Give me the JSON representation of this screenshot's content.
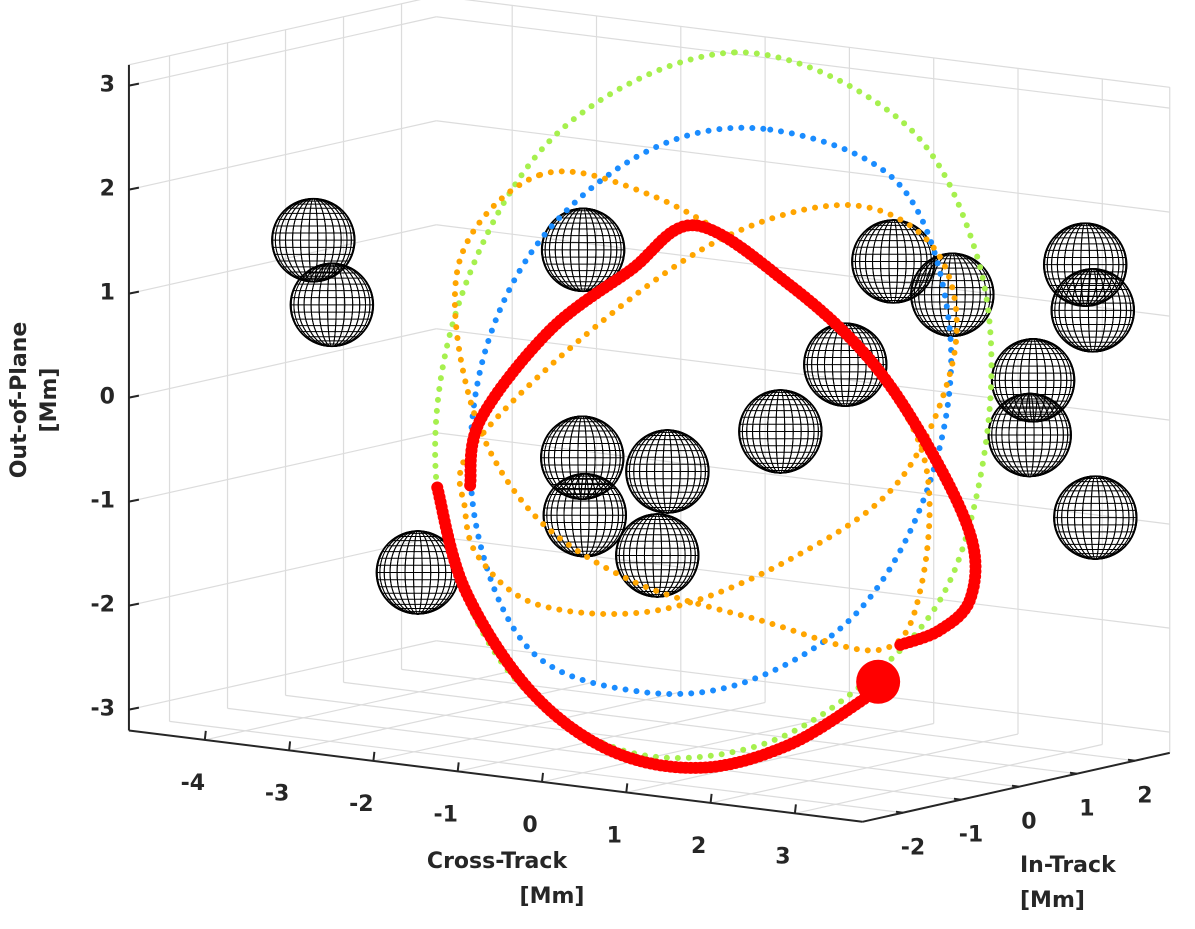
{
  "chart_data": {
    "type": "scatter3d",
    "xlabel": [
      "Cross-Track",
      "[Mm]"
    ],
    "ylabel": [
      "In-Track",
      "[Mm]"
    ],
    "zlabel": [
      "Out-of-Plane",
      "[Mm]"
    ],
    "xlim": [
      -4.9,
      3.8
    ],
    "ylim": [
      -2.7,
      2.6
    ],
    "zlim": [
      -3.2,
      3.2
    ],
    "xticks": [
      -4,
      -3,
      -2,
      -1,
      0,
      1,
      2,
      3
    ],
    "yticks": [
      -2,
      -1,
      0,
      1,
      2
    ],
    "zticks": [
      -3,
      -2,
      -1,
      0,
      1,
      2,
      3
    ],
    "grid": true,
    "series": [
      {
        "color": "#a6f04e",
        "style": "dotted",
        "closed": true,
        "x": [
          0.43,
          2.39,
          3.28,
          3.46,
          3.04,
          2.15,
          0.73,
          -0.93,
          -2.36,
          -3.1,
          -2.83,
          -1.64
        ],
        "z": [
          3.52,
          3.07,
          1.91,
          0.48,
          -1.19,
          -2.24,
          -3.11,
          -3.32,
          -2.6,
          -1.05,
          0.81,
          2.56
        ]
      },
      {
        "color": "#1a8cff",
        "style": "dotted",
        "closed": true,
        "x": [
          0.85,
          2.39,
          2.98,
          2.75,
          1.91,
          0.61,
          -0.7,
          -2.0,
          -2.65,
          -2.59,
          -1.88,
          -0.58
        ],
        "z": [
          2.82,
          2.44,
          1.11,
          -0.36,
          -1.69,
          -2.5,
          -2.74,
          -2.47,
          -1.29,
          0.16,
          1.48,
          2.48
        ]
      },
      {
        "color": "#ffa500",
        "style": "dotted",
        "closed": true,
        "x": [
          -1.88,
          -0.58,
          0.73,
          1.91,
          2.68,
          2.63,
          2.15,
          0.73,
          -0.81,
          -2.0,
          -2.71,
          -2.83
        ],
        "z": [
          2.11,
          2.05,
          1.56,
          0.81,
          -0.17,
          -1.43,
          -2.05,
          -1.91,
          -1.68,
          -1.13,
          -0.14,
          1.2
        ]
      },
      {
        "color": "#ffa500",
        "style": "dotted",
        "closed": true,
        "x": [
          -2.71,
          -1.41,
          0.25,
          1.8,
          2.81,
          3.04,
          2.39,
          1.08,
          -0.46,
          -1.88,
          -2.59,
          -2.77
        ],
        "z": [
          -0.62,
          0.57,
          1.7,
          2.19,
          1.86,
          0.92,
          -0.39,
          -1.29,
          -1.93,
          -2.03,
          -1.66,
          -1.2
        ]
      },
      {
        "color": "#ff0000",
        "style": "bold",
        "closed": false,
        "x": [
          -2.71,
          -2.59,
          -1.76,
          -0.81,
          -0.04,
          1.08,
          2.03,
          2.75,
          3.24,
          3.22,
          2.86,
          2.39,
          null,
          -3.1,
          -2.77,
          -2.0,
          -1.05,
          0.02,
          1.08,
          2.03
        ],
        "z": [
          -0.96,
          -0.32,
          0.63,
          1.3,
          1.81,
          1.35,
          0.73,
          -0.07,
          -0.88,
          -1.46,
          -1.79,
          -1.98,
          null,
          -1.02,
          -1.97,
          -2.86,
          -3.34,
          -3.4,
          -3.07,
          -2.5
        ]
      }
    ],
    "marker": {
      "x": 2.13,
      "z": -2.36,
      "color": "#ff0000"
    },
    "spheres": {
      "radius": 0.4,
      "color": "#000000",
      "centers": [
        [
          -4.57,
          0,
          1.21
        ],
        [
          -4.35,
          0,
          0.61
        ],
        [
          -1.37,
          0,
          1.44
        ],
        [
          2.31,
          0,
          1.7
        ],
        [
          3.01,
          0,
          1.45
        ],
        [
          3.21,
          2,
          1.51
        ],
        [
          3.3,
          2,
          1.08
        ],
        [
          1.74,
          0,
          0.65
        ],
        [
          3.28,
          1,
          0.53
        ],
        [
          3.24,
          1,
          0.0
        ],
        [
          0.97,
          0,
          -0.07
        ],
        [
          -1.38,
          0,
          -0.56
        ],
        [
          -0.37,
          0,
          -0.59
        ],
        [
          -1.35,
          0,
          -1.11
        ],
        [
          -0.49,
          0,
          -1.41
        ],
        [
          3.33,
          2,
          -0.91
        ],
        [
          -3.33,
          0,
          -1.86
        ]
      ]
    }
  }
}
